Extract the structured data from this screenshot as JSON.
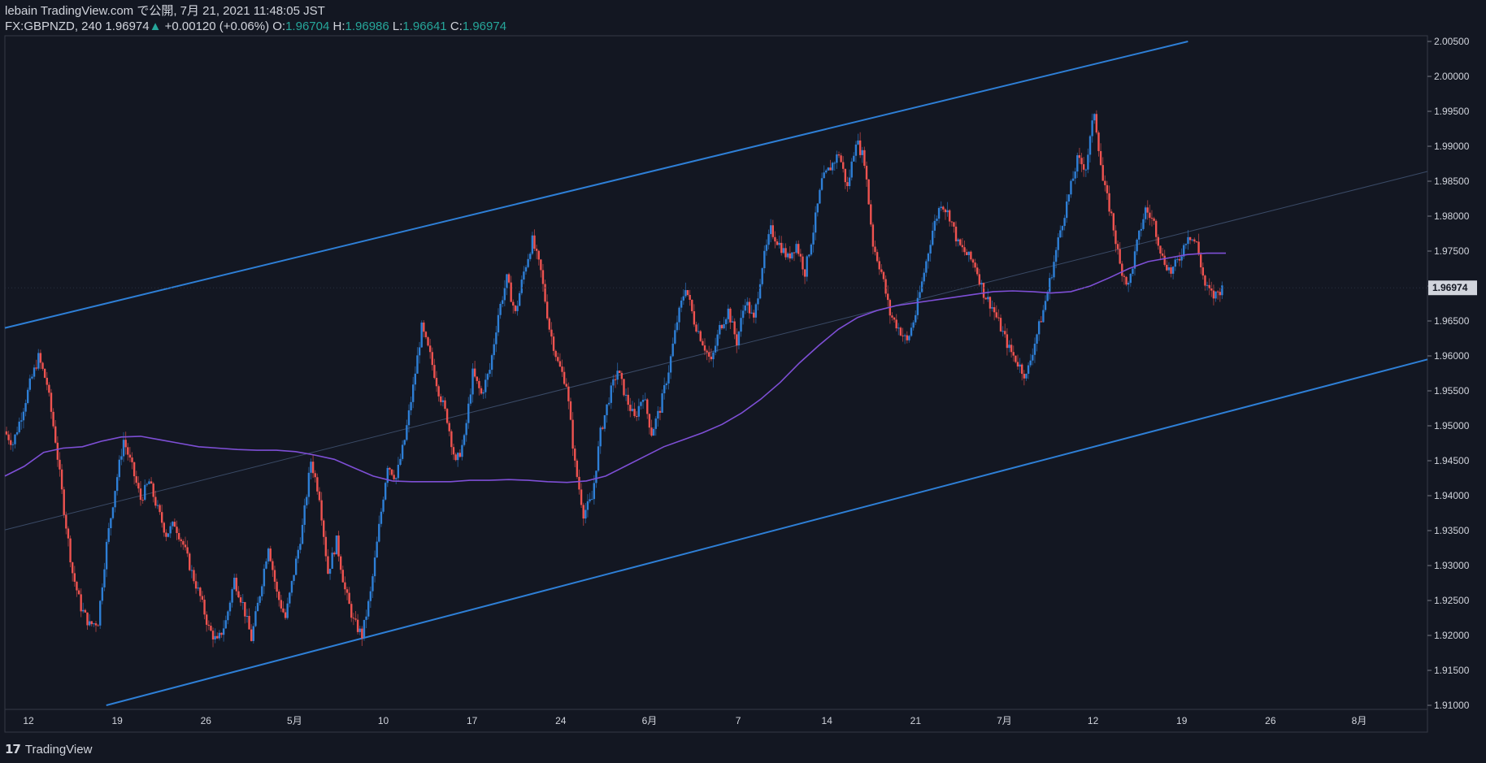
{
  "header": {
    "publish_line": "lebain TradingView.com で公開, 7月 21, 2021 11:48:05 JST",
    "symbol": "FX:GBPNZD, 240",
    "last": "1.96974",
    "change": "+0.00120 (+0.06%)",
    "o_label": "O:",
    "o_value": "1.96704",
    "h_label": "H:",
    "h_value": "1.96986",
    "l_label": "L:",
    "l_value": "1.96641",
    "c_label": "C:",
    "c_value": "1.96974"
  },
  "footer": {
    "brand": "TradingView"
  },
  "colors": {
    "background": "#131722",
    "bull": "#2e7fd6",
    "bear": "#ef5350",
    "ma": "#7e4fd6",
    "channel": "#2e7fd6",
    "up_text": "#26a69a"
  },
  "chart_data": {
    "type": "line",
    "title": "",
    "xlabel": "",
    "ylabel": "",
    "ylim": [
      1.91,
      2.005
    ],
    "grid": false,
    "price_ticks": [
      "2.00500",
      "2.00000",
      "1.99500",
      "1.99000",
      "1.98500",
      "1.98000",
      "1.97500",
      "1.97000",
      "1.96500",
      "1.96000",
      "1.95500",
      "1.95000",
      "1.94500",
      "1.94000",
      "1.93500",
      "1.93000",
      "1.92500",
      "1.92000",
      "1.91500",
      "1.91000"
    ],
    "time_ticks": [
      "12",
      "19",
      "26",
      "5月",
      "10",
      "17",
      "24",
      "6月",
      "7",
      "14",
      "21",
      "7月",
      "12",
      "19",
      "26",
      "8月"
    ],
    "last_price": "1.96974",
    "series": [
      {
        "values": [
          1.9492,
          1.9475,
          1.9515,
          1.956,
          1.9598,
          1.956,
          1.948,
          1.938,
          1.929,
          1.924,
          1.9215,
          1.922,
          1.933,
          1.941,
          1.948,
          1.944,
          1.9395,
          1.942,
          1.938,
          1.9345,
          1.936,
          1.933,
          1.929,
          1.9255,
          1.921,
          1.919,
          1.922,
          1.928,
          1.9245,
          1.9195,
          1.926,
          1.933,
          1.926,
          1.9225,
          1.929,
          1.9355,
          1.945,
          1.94,
          1.929,
          1.9335,
          1.9265,
          1.922,
          1.92,
          1.926,
          1.9355,
          1.9445,
          1.9425,
          1.948,
          1.9555,
          1.964,
          1.96,
          1.955,
          1.951,
          1.9445,
          1.948,
          1.9575,
          1.9545,
          1.958,
          1.966,
          1.971,
          1.966,
          1.972,
          1.9765,
          1.972,
          1.964,
          1.959,
          1.956,
          1.9445,
          1.9375,
          1.9395,
          1.949,
          1.954,
          1.958,
          1.954,
          1.951,
          1.9545,
          1.949,
          1.9525,
          1.958,
          1.965,
          1.97,
          1.965,
          1.962,
          1.959,
          1.964,
          1.9665,
          1.962,
          1.968,
          1.965,
          1.973,
          1.978,
          1.976,
          1.974,
          1.976,
          1.972,
          1.978,
          1.985,
          1.987,
          1.989,
          1.984,
          1.991,
          1.988,
          1.976,
          1.972,
          1.966,
          1.964,
          1.962,
          1.966,
          1.972,
          1.978,
          1.982,
          1.98,
          1.976,
          1.9745,
          1.973,
          1.969,
          1.967,
          1.964,
          1.961,
          1.959,
          1.957,
          1.962,
          1.9665,
          1.972,
          1.978,
          1.983,
          1.988,
          1.987,
          1.995,
          1.985,
          1.98,
          1.973,
          1.97,
          1.976,
          1.981,
          1.979,
          1.974,
          1.972,
          1.974,
          1.9775,
          1.976,
          1.97,
          1.9685,
          1.9697
        ]
      },
      {
        "values": [
          1.9428,
          1.9442,
          1.9462,
          1.9468,
          1.947,
          1.9478,
          1.9484,
          1.9485,
          1.948,
          1.9475,
          1.947,
          1.9468,
          1.9466,
          1.9465,
          1.9465,
          1.9463,
          1.9458,
          1.9452,
          1.944,
          1.9428,
          1.9421,
          1.942,
          1.942,
          1.942,
          1.9422,
          1.9422,
          1.9423,
          1.9422,
          1.942,
          1.9419,
          1.9421,
          1.9428,
          1.9442,
          1.9456,
          1.947,
          1.948,
          1.949,
          1.9502,
          1.9518,
          1.9538,
          1.9562,
          1.959,
          1.9615,
          1.9638,
          1.9655,
          1.9665,
          1.9672,
          1.9676,
          1.968,
          1.9684,
          1.9688,
          1.9692,
          1.9693,
          1.9692,
          1.969,
          1.9692,
          1.97,
          1.9712,
          1.9725,
          1.9735,
          1.974,
          1.9745,
          1.9747,
          1.9747
        ]
      }
    ]
  }
}
